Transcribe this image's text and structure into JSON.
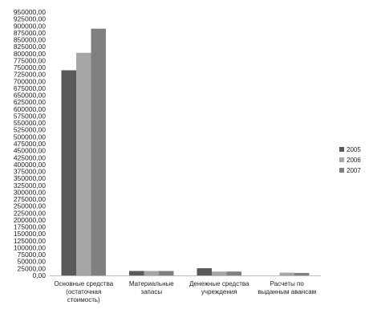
{
  "chart_data": {
    "type": "bar",
    "categories": [
      [
        "Основные средства",
        "(остаточная",
        "стоимость)"
      ],
      [
        "Материальные",
        "запасы"
      ],
      [
        "Денежные средства",
        "учреждения"
      ],
      [
        "Расчеты по",
        "выданным авансам"
      ]
    ],
    "series": [
      {
        "name": "2005",
        "color": "#595959",
        "values": [
          740000,
          16000,
          26000,
          0
        ]
      },
      {
        "name": "2006",
        "color": "#a6a6a6",
        "values": [
          803000,
          16000,
          14000,
          10000
        ]
      },
      {
        "name": "2007",
        "color": "#808080",
        "values": [
          890000,
          16000,
          14000,
          9000
        ]
      }
    ],
    "ylim": [
      0,
      950000
    ],
    "ytick_step": 25000,
    "ytick_labels": [
      "0,00",
      "25000,00",
      "50000,00",
      "75000,00",
      "100000,00",
      "125000,00",
      "150000,00",
      "175000,00",
      "200000,00",
      "225000,00",
      "250000,00",
      "275000,00",
      "300000,00",
      "325000,00",
      "350000,00",
      "375000,00",
      "400000,00",
      "425000,00",
      "450000,00",
      "475000,00",
      "500000,00",
      "525000,00",
      "550000,00",
      "575000,00",
      "600000,00",
      "625000,00",
      "650000,00",
      "675000,00",
      "700000,00",
      "725000,00",
      "750000,00",
      "775000,00",
      "800000,00",
      "825000,00",
      "850000,00",
      "875000,00",
      "900000,00",
      "925000,00",
      "950000,00"
    ],
    "legend_position": "right",
    "grid": false
  }
}
